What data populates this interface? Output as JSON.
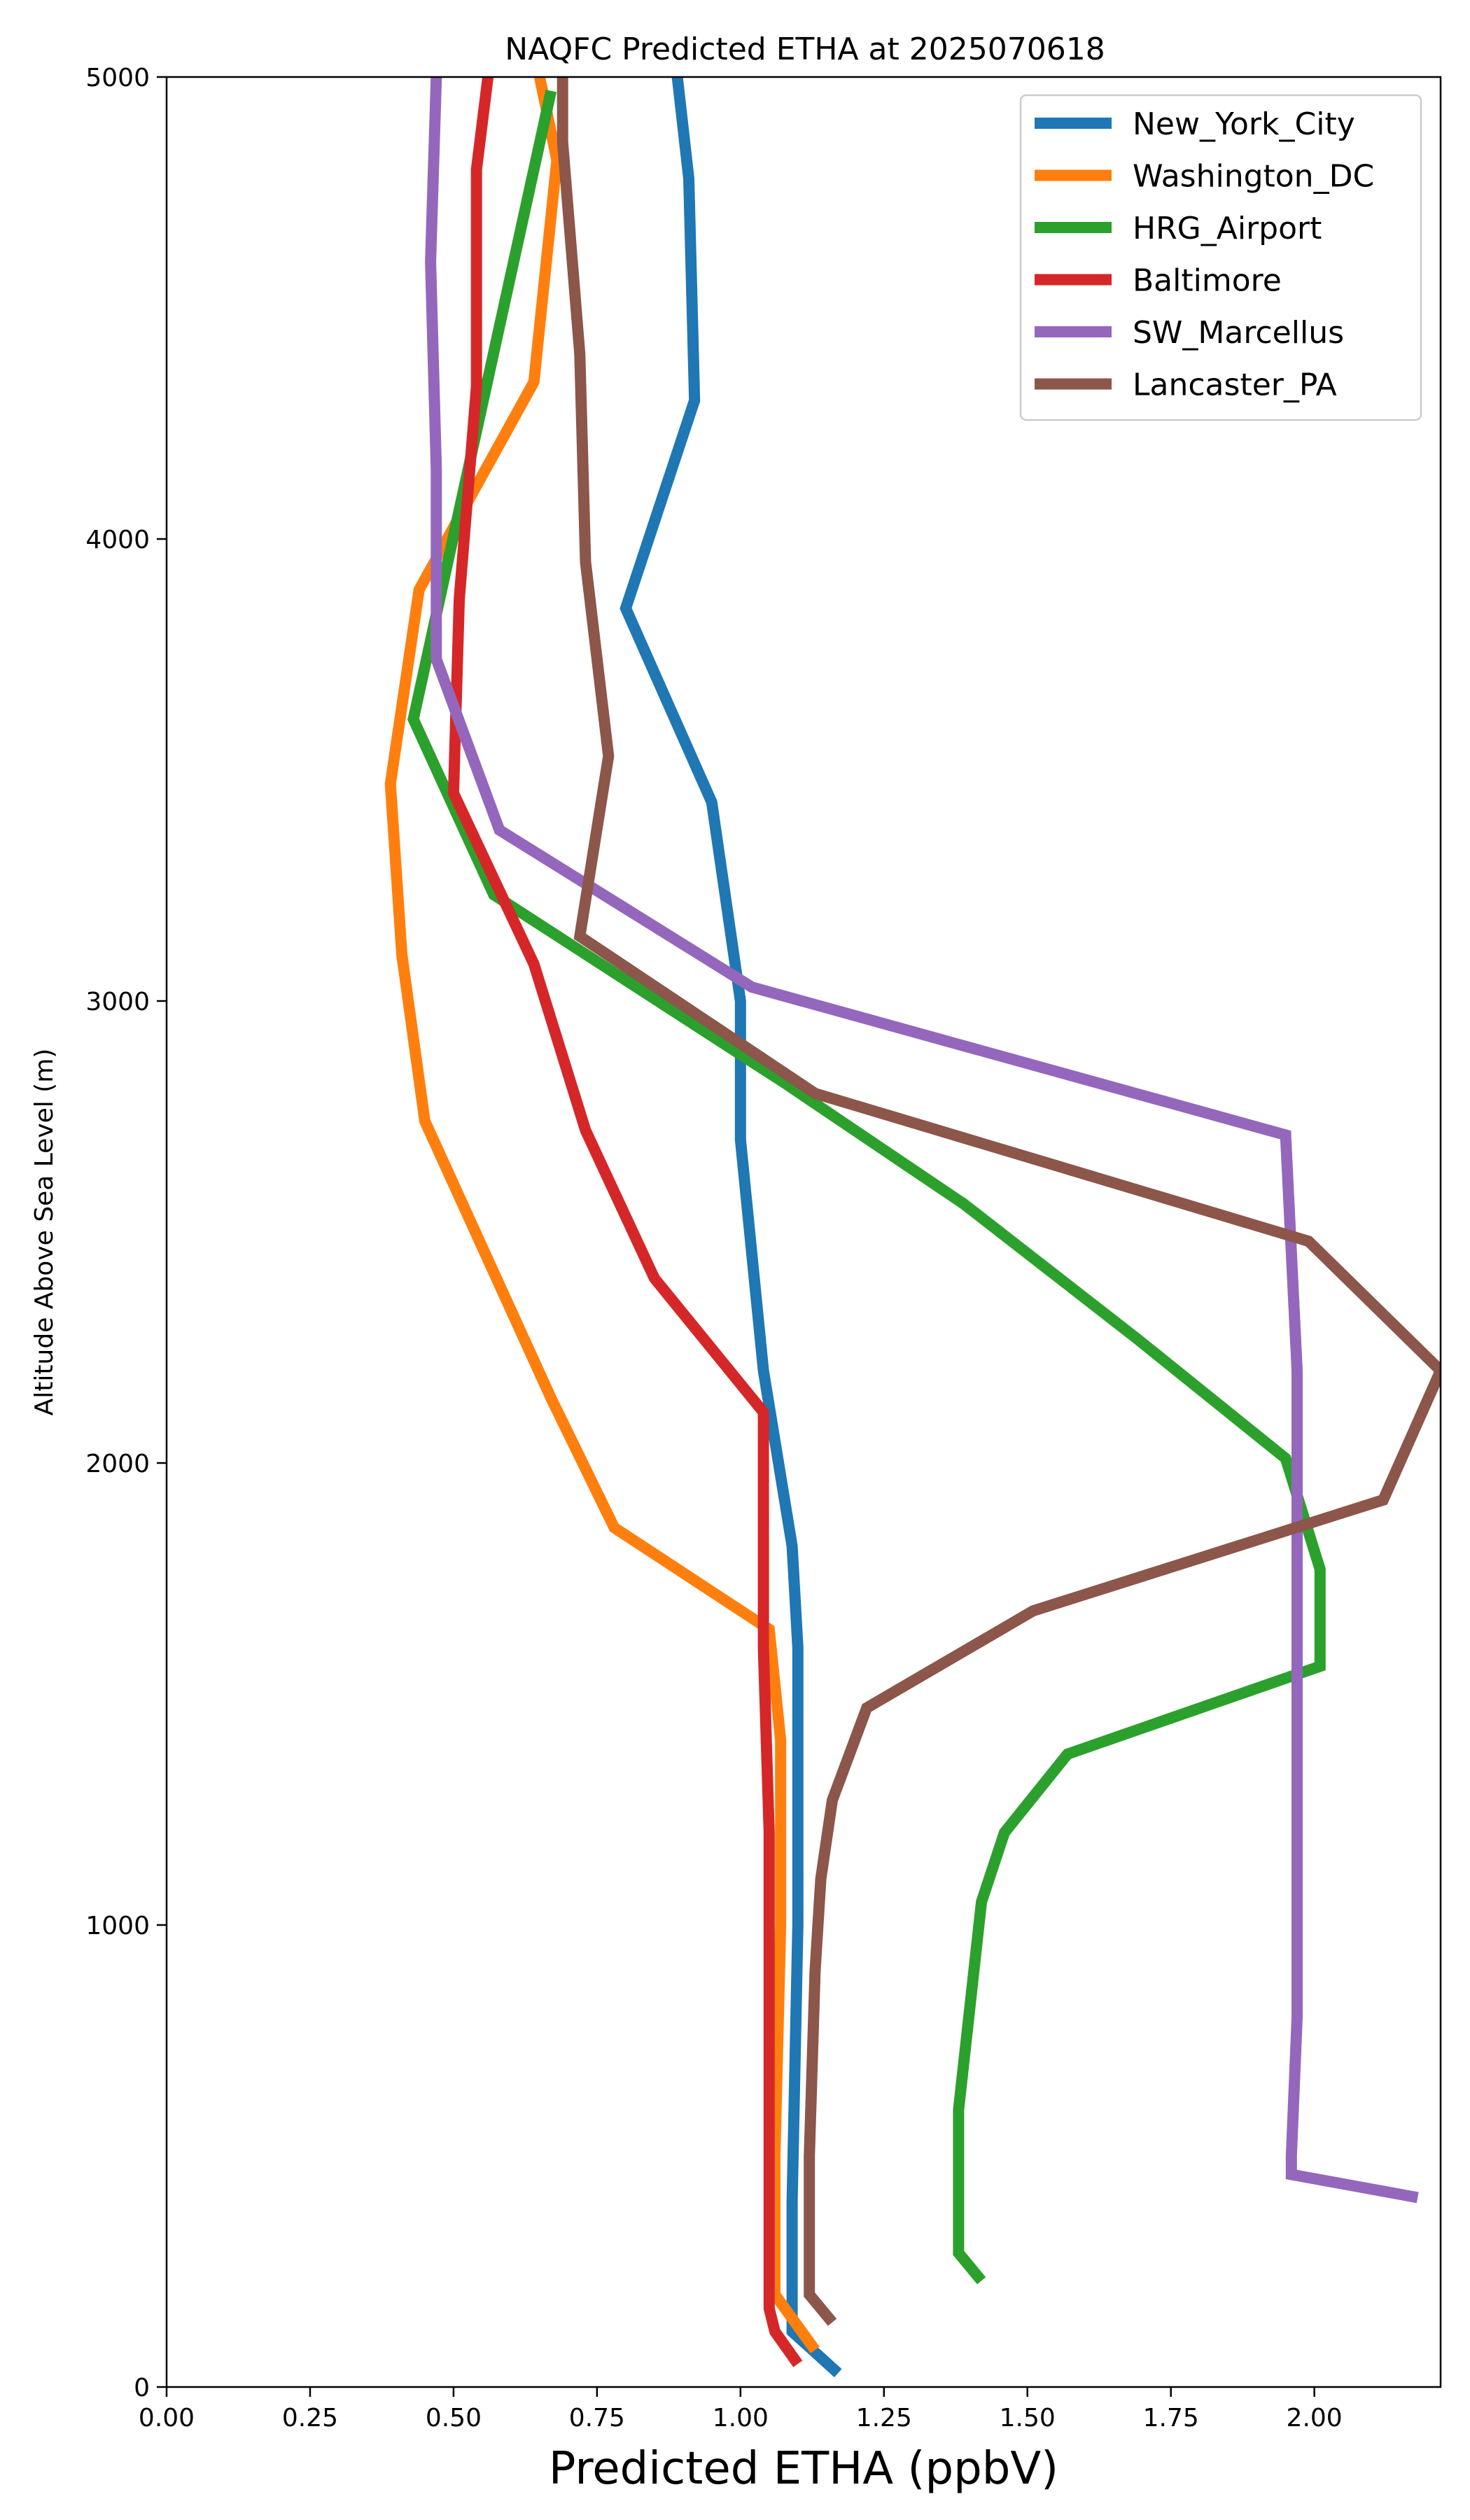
{
  "chart_data": {
    "type": "line",
    "title": "NAQFC Predicted ETHA at 2025070618",
    "xlabel": "Predicted ETHA (ppbV)",
    "ylabel": "Altitude Above Sea Level (m)",
    "xlim": [
      0,
      2.22
    ],
    "ylim": [
      0,
      5000
    ],
    "xticks": [
      0.0,
      0.25,
      0.5,
      0.75,
      1.0,
      1.25,
      1.5,
      1.75,
      2.0
    ],
    "xtick_labels": [
      "0.00",
      "0.25",
      "0.50",
      "0.75",
      "1.00",
      "1.25",
      "1.50",
      "1.75",
      "2.00"
    ],
    "yticks": [
      0,
      1000,
      2000,
      3000,
      4000,
      5000
    ],
    "ytick_labels": [
      "0",
      "1000",
      "2000",
      "3000",
      "4000",
      "5000"
    ],
    "grid": false,
    "legend_position": "top-right",
    "series": [
      {
        "name": "New_York_City",
        "color": "#1f77b4",
        "points": [
          [
            1.17,
            30
          ],
          [
            1.09,
            120
          ],
          [
            1.09,
            400
          ],
          [
            1.1,
            1000
          ],
          [
            1.1,
            1600
          ],
          [
            1.09,
            1820
          ],
          [
            1.04,
            2200
          ],
          [
            1.0,
            2700
          ],
          [
            1.0,
            3000
          ],
          [
            0.95,
            3430
          ],
          [
            0.8,
            3850
          ],
          [
            0.92,
            4300
          ],
          [
            0.91,
            4780
          ],
          [
            0.89,
            5000
          ]
        ]
      },
      {
        "name": "Washington_DC",
        "color": "#ff7f0e",
        "points": [
          [
            1.13,
            80
          ],
          [
            1.06,
            200
          ],
          [
            1.06,
            500
          ],
          [
            1.07,
            1000
          ],
          [
            1.07,
            1400
          ],
          [
            1.05,
            1640
          ],
          [
            0.78,
            1860
          ],
          [
            0.67,
            2140
          ],
          [
            0.45,
            2740
          ],
          [
            0.41,
            3100
          ],
          [
            0.39,
            3470
          ],
          [
            0.44,
            3890
          ],
          [
            0.64,
            4340
          ],
          [
            0.68,
            4820
          ],
          [
            0.65,
            5000
          ]
        ]
      },
      {
        "name": "HRG_Airport",
        "color": "#2ca02c",
        "points": [
          [
            1.42,
            230
          ],
          [
            1.38,
            290
          ],
          [
            1.38,
            600
          ],
          [
            1.42,
            1050
          ],
          [
            1.46,
            1200
          ],
          [
            1.57,
            1370
          ],
          [
            2.01,
            1560
          ],
          [
            2.01,
            1770
          ],
          [
            1.95,
            2010
          ],
          [
            1.69,
            2270
          ],
          [
            1.39,
            2560
          ],
          [
            1.08,
            2820
          ],
          [
            0.57,
            3230
          ],
          [
            0.43,
            3610
          ],
          [
            0.67,
            4970
          ]
        ]
      },
      {
        "name": "Baltimore",
        "color": "#d62728",
        "points": [
          [
            1.1,
            50
          ],
          [
            1.06,
            120
          ],
          [
            1.05,
            170
          ],
          [
            1.05,
            600
          ],
          [
            1.05,
            1200
          ],
          [
            1.04,
            1600
          ],
          [
            1.04,
            2110
          ],
          [
            0.85,
            2400
          ],
          [
            0.73,
            2720
          ],
          [
            0.64,
            3080
          ],
          [
            0.5,
            3450
          ],
          [
            0.51,
            3870
          ],
          [
            0.54,
            4330
          ],
          [
            0.54,
            4800
          ],
          [
            0.56,
            5000
          ]
        ]
      },
      {
        "name": "SW_Marcellus",
        "color": "#9467bd",
        "points": [
          [
            2.18,
            410
          ],
          [
            1.96,
            460
          ],
          [
            1.96,
            500
          ],
          [
            1.97,
            800
          ],
          [
            1.97,
            1500
          ],
          [
            1.97,
            2200
          ],
          [
            1.95,
            2710
          ],
          [
            1.02,
            3030
          ],
          [
            0.58,
            3370
          ],
          [
            0.47,
            3740
          ],
          [
            0.47,
            4150
          ],
          [
            0.46,
            4600
          ],
          [
            0.47,
            5000
          ]
        ]
      },
      {
        "name": "Lancaster_PA",
        "color": "#8c564b",
        "points": [
          [
            1.16,
            140
          ],
          [
            1.12,
            200
          ],
          [
            1.12,
            500
          ],
          [
            1.13,
            900
          ],
          [
            1.14,
            1100
          ],
          [
            1.16,
            1270
          ],
          [
            1.22,
            1470
          ],
          [
            1.51,
            1680
          ],
          [
            2.12,
            1920
          ],
          [
            2.22,
            2200
          ],
          [
            1.99,
            2480
          ],
          [
            1.13,
            2800
          ],
          [
            0.72,
            3140
          ],
          [
            0.77,
            3530
          ],
          [
            0.73,
            3950
          ],
          [
            0.72,
            4400
          ],
          [
            0.69,
            4860
          ],
          [
            0.69,
            5000
          ]
        ]
      }
    ]
  }
}
